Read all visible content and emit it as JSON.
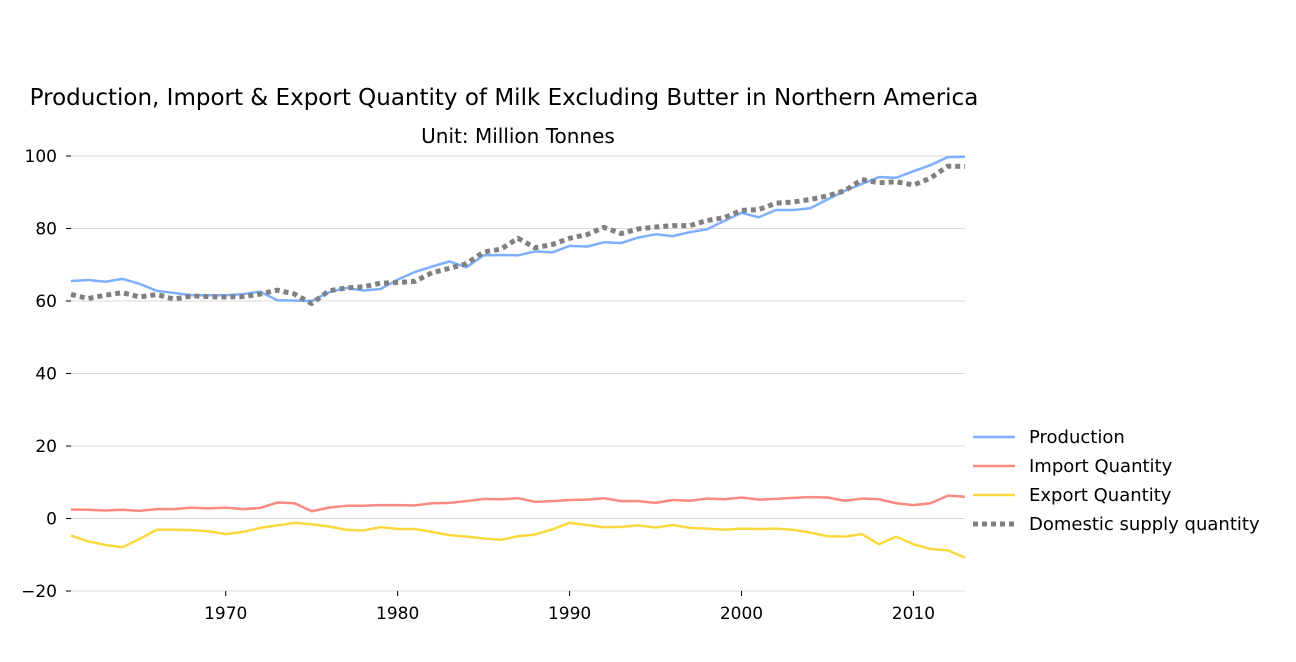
{
  "chart_data": {
    "type": "line",
    "title": "Production, Import & Export Quantity of Milk Excluding Butter in Northern America",
    "subtitle": "Unit: Million Tonnes",
    "xlabel": "",
    "ylabel": "",
    "xlim": [
      1961,
      2013
    ],
    "ylim": [
      -20,
      100
    ],
    "x_ticks": [
      1970,
      1980,
      1990,
      2000,
      2010
    ],
    "y_ticks": [
      -20,
      0,
      20,
      40,
      60,
      80,
      100
    ],
    "y_tick_labels": [
      "−20",
      "0",
      "20",
      "40",
      "60",
      "80",
      "100"
    ],
    "grid": true,
    "legend_position": "right",
    "x": [
      1961,
      1962,
      1963,
      1964,
      1965,
      1966,
      1967,
      1968,
      1969,
      1970,
      1971,
      1972,
      1973,
      1974,
      1975,
      1976,
      1977,
      1978,
      1979,
      1980,
      1981,
      1982,
      1983,
      1984,
      1985,
      1986,
      1987,
      1988,
      1989,
      1990,
      1991,
      1992,
      1993,
      1994,
      1995,
      1996,
      1997,
      1998,
      1999,
      2000,
      2001,
      2002,
      2003,
      2004,
      2005,
      2006,
      2007,
      2008,
      2009,
      2010,
      2011,
      2012,
      2013
    ],
    "series": [
      {
        "name": "Production",
        "color": "#7fb0ff",
        "style": "solid",
        "values": [
          65.5,
          65.8,
          65.3,
          66.1,
          64.7,
          62.8,
          62.2,
          61.6,
          61.6,
          61.6,
          61.9,
          62.6,
          60.2,
          60.1,
          60.0,
          62.4,
          63.6,
          62.9,
          63.3,
          65.9,
          68.0,
          69.5,
          70.9,
          69.3,
          72.6,
          72.7,
          72.6,
          73.7,
          73.4,
          75.2,
          75.0,
          76.2,
          76.0,
          77.5,
          78.4,
          77.9,
          79.0,
          79.8,
          82.1,
          84.3,
          83.1,
          85.1,
          85.1,
          85.6,
          88.0,
          90.4,
          92.3,
          94.2,
          94.0,
          95.8,
          97.5,
          99.7,
          99.8
        ]
      },
      {
        "name": "Import Quantity",
        "color": "#fa8a7f",
        "style": "solid",
        "values": [
          2.5,
          2.4,
          2.2,
          2.4,
          2.1,
          2.6,
          2.6,
          3.0,
          2.8,
          3.0,
          2.6,
          2.9,
          4.4,
          4.2,
          2.0,
          3.0,
          3.5,
          3.5,
          3.7,
          3.7,
          3.6,
          4.2,
          4.3,
          4.8,
          5.4,
          5.3,
          5.6,
          4.6,
          4.8,
          5.1,
          5.2,
          5.6,
          4.8,
          4.8,
          4.3,
          5.1,
          4.9,
          5.5,
          5.3,
          5.8,
          5.2,
          5.4,
          5.7,
          5.9,
          5.8,
          4.9,
          5.5,
          5.3,
          4.2,
          3.7,
          4.2,
          6.3,
          6.0
        ]
      },
      {
        "name": "Export Quantity",
        "color": "#fbd93e",
        "style": "solid",
        "values": [
          -4.7,
          -6.3,
          -7.3,
          -7.9,
          -5.6,
          -3.1,
          -3.1,
          -3.2,
          -3.5,
          -4.3,
          -3.7,
          -2.6,
          -1.9,
          -1.2,
          -1.6,
          -2.2,
          -3.1,
          -3.3,
          -2.4,
          -2.9,
          -2.9,
          -3.7,
          -4.6,
          -5.0,
          -5.5,
          -5.9,
          -4.9,
          -4.4,
          -3.0,
          -1.2,
          -1.8,
          -2.4,
          -2.3,
          -1.9,
          -2.5,
          -1.8,
          -2.6,
          -2.8,
          -3.1,
          -2.8,
          -2.9,
          -2.8,
          -3.1,
          -3.9,
          -4.9,
          -5.0,
          -4.3,
          -7.1,
          -5.0,
          -7.1,
          -8.4,
          -8.8,
          -10.8
        ]
      },
      {
        "name": "Domestic supply quantity",
        "color": "#808080",
        "style": "dotted",
        "values": [
          61.8,
          60.7,
          61.6,
          62.3,
          61.1,
          61.8,
          60.5,
          61.4,
          61.2,
          61.1,
          61.2,
          61.9,
          63.0,
          61.9,
          59.3,
          62.8,
          63.6,
          63.9,
          64.9,
          65.1,
          65.4,
          67.8,
          69.0,
          70.3,
          73.5,
          74.3,
          77.3,
          74.7,
          75.6,
          77.3,
          78.3,
          80.3,
          78.6,
          79.9,
          80.4,
          80.8,
          80.8,
          82.2,
          83.0,
          85.0,
          85.2,
          87.0,
          87.3,
          88.0,
          89.0,
          90.4,
          93.5,
          92.6,
          92.9,
          92.0,
          93.9,
          97.2,
          97.1
        ]
      }
    ]
  }
}
